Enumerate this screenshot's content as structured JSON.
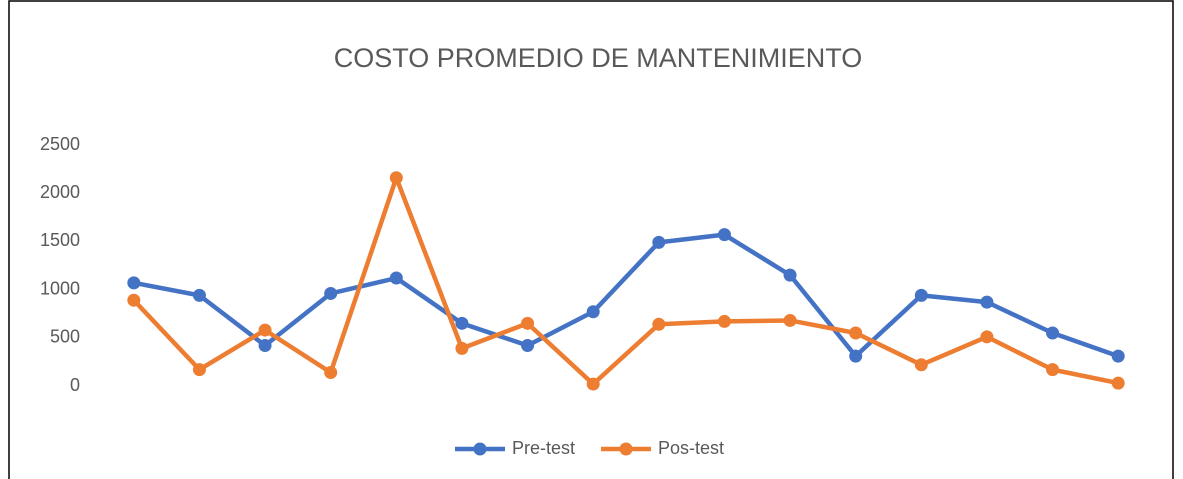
{
  "chart_data": {
    "type": "line",
    "title": "COSTO PROMEDIO DE MANTENIMIENTO",
    "categories": [
      null,
      null,
      null,
      null,
      null,
      null,
      null,
      null,
      null,
      null,
      null,
      null,
      null,
      null,
      null,
      null
    ],
    "series": [
      {
        "name": "Pre-test",
        "color": "#4472c4",
        "values": [
          1070,
          940,
          420,
          960,
          1120,
          650,
          420,
          770,
          1490,
          1570,
          1150,
          310,
          940,
          870,
          550,
          310
        ]
      },
      {
        "name": "Pos-test",
        "color": "#ed7d31",
        "values": [
          890,
          170,
          580,
          140,
          2160,
          390,
          650,
          20,
          640,
          670,
          680,
          550,
          220,
          510,
          170,
          30
        ]
      }
    ],
    "ylim": [
      0,
      2500
    ],
    "yticks": [
      0,
      500,
      1000,
      1500,
      2000,
      2500
    ],
    "grid": false,
    "legend": "bottom"
  }
}
